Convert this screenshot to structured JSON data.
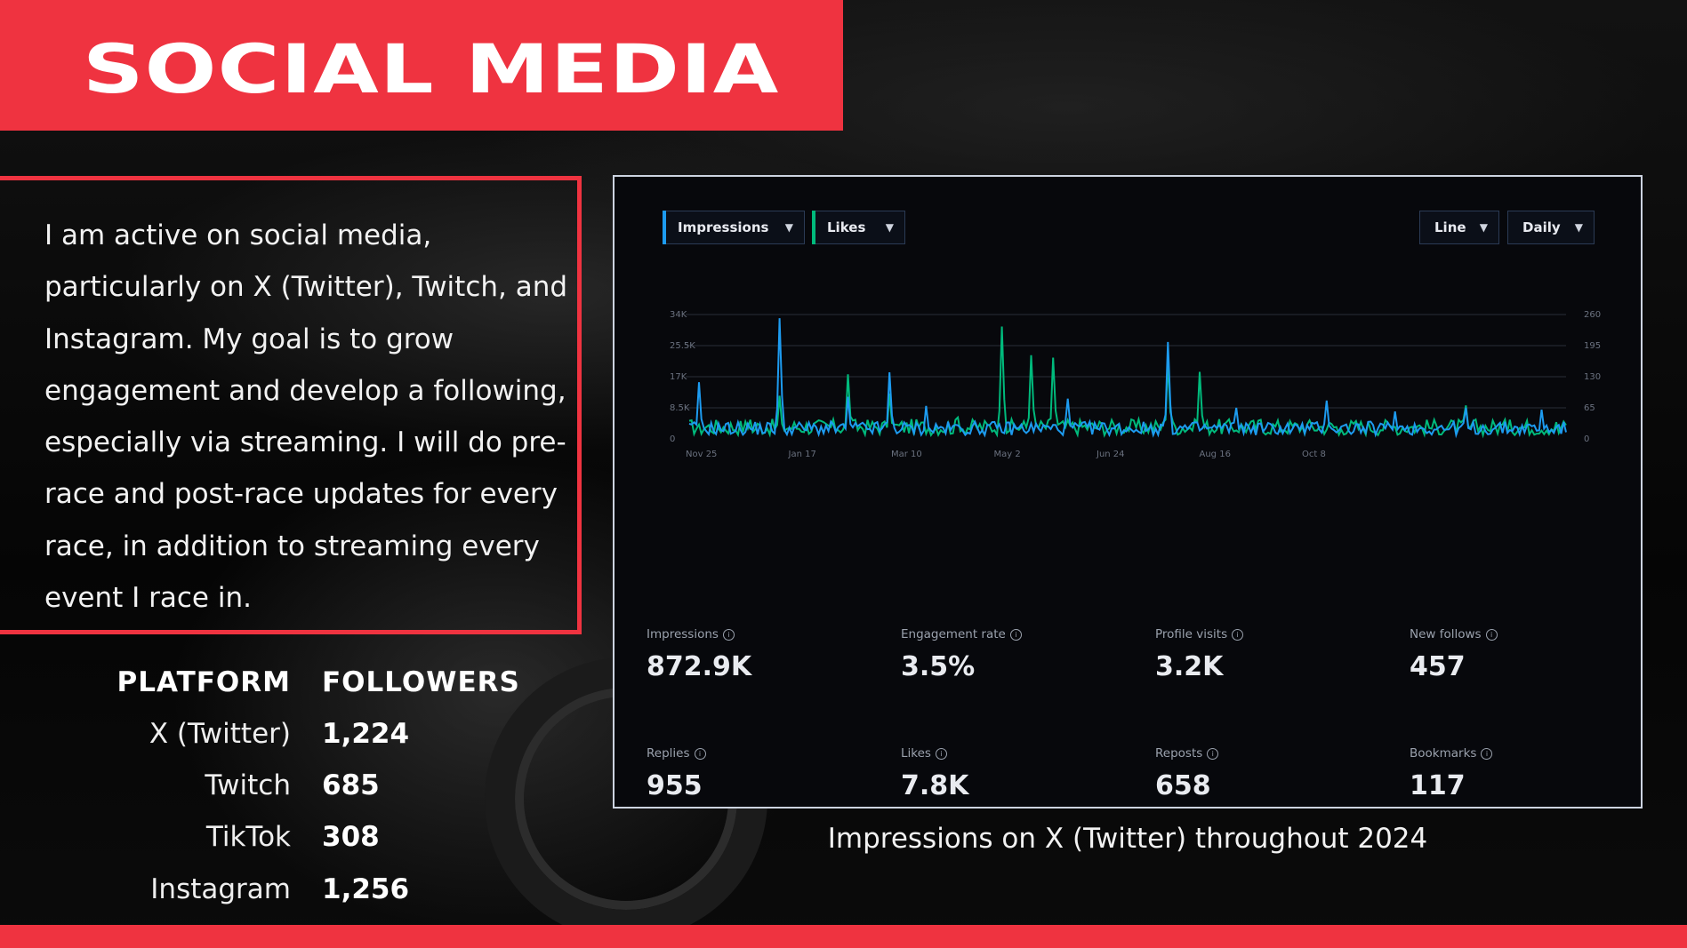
{
  "title": "SOCIAL MEDIA",
  "description": "I am active on social media, particularly on X (Twitter), Twitch, and Instagram. My goal is to grow engagement and develop a following, especially via streaming. I will do pre-race and post-race updates for every race, in addition to streaming every event I race in.",
  "table": {
    "headers": {
      "platform": "PLATFORM",
      "followers": "FOLLOWERS"
    },
    "rows": [
      {
        "platform": "X (Twitter)",
        "followers": "1,224"
      },
      {
        "platform": "Twitch",
        "followers": "685"
      },
      {
        "platform": "TikTok",
        "followers": "308"
      },
      {
        "platform": "Instagram",
        "followers": "1,256"
      }
    ]
  },
  "analytics": {
    "controls": {
      "impressions": "Impressions",
      "likes": "Likes",
      "line": "Line",
      "daily": "Daily"
    },
    "colors": {
      "impressions": "#1d9bf0",
      "likes": "#00ba7c",
      "grid": "#2a2e37",
      "axis_text": "#6b7280"
    },
    "stats": [
      {
        "label": "Impressions",
        "value": "872.9K"
      },
      {
        "label": "Engagement rate",
        "value": "3.5%"
      },
      {
        "label": "Profile visits",
        "value": "3.2K"
      },
      {
        "label": "New follows",
        "value": "457"
      },
      {
        "label": "Replies",
        "value": "955"
      },
      {
        "label": "Likes",
        "value": "7.8K"
      },
      {
        "label": "Reposts",
        "value": "658"
      },
      {
        "label": "Bookmarks",
        "value": "117"
      }
    ]
  },
  "caption": "Impressions on X (Twitter) throughout 2024",
  "chart_data": {
    "type": "line",
    "x": [
      "Nov 25",
      "Jan 17",
      "Mar 10",
      "May 2",
      "Jun 24",
      "Aug 16",
      "Oct 8"
    ],
    "left_ticks": [
      "0",
      "8.5K",
      "17K",
      "25.5K",
      "34K"
    ],
    "right_ticks": [
      "0",
      "65",
      "130",
      "195",
      "260"
    ],
    "ylim_left": [
      0,
      34000
    ],
    "ylim_right": [
      0,
      260
    ],
    "series": [
      {
        "name": "Impressions",
        "axis": "left",
        "spikes": [
          [
            4,
            15500
          ],
          [
            37,
            33000
          ],
          [
            65,
            11500
          ],
          [
            82,
            18200
          ],
          [
            97,
            9000
          ],
          [
            155,
            11000
          ],
          [
            196,
            26500
          ],
          [
            224,
            8500
          ],
          [
            261,
            10500
          ],
          [
            289,
            7500
          ],
          [
            318,
            8500
          ],
          [
            349,
            8000
          ]
        ]
      },
      {
        "name": "Likes",
        "axis": "right",
        "spikes": [
          [
            4,
            30
          ],
          [
            25,
            40
          ],
          [
            37,
            90
          ],
          [
            65,
            135
          ],
          [
            82,
            95
          ],
          [
            110,
            45
          ],
          [
            128,
            235
          ],
          [
            140,
            175
          ],
          [
            149,
            170
          ],
          [
            196,
            160
          ],
          [
            209,
            140
          ],
          [
            234,
            40
          ],
          [
            265,
            25
          ],
          [
            289,
            25
          ],
          [
            318,
            70
          ],
          [
            336,
            40
          ],
          [
            355,
            35
          ]
        ]
      }
    ],
    "days": 360
  }
}
